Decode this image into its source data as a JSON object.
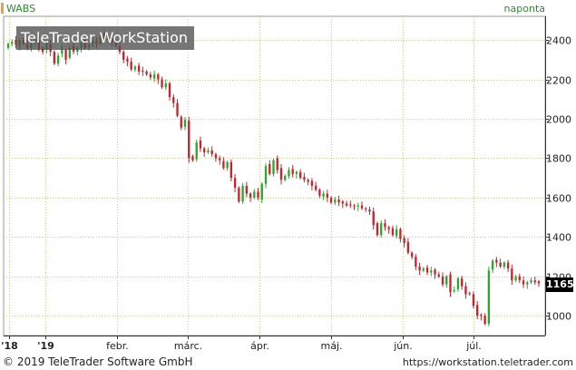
{
  "header": {
    "symbol": "WABS",
    "period": "naponta"
  },
  "watermark": "TeleTrader WorkStation",
  "footer": {
    "copyright": "© 2019 TeleTrader Software GmbH",
    "url": "https://workstation.teletrader.com"
  },
  "last_price": "1165",
  "colors": {
    "up": "#2ea52e",
    "down": "#c8232c",
    "accent": "#f2a03d",
    "grid": "#b7dc7a"
  },
  "chart_data": {
    "type": "candlestick",
    "y_axis_position": "right",
    "ylim": [
      900,
      2520
    ],
    "y_ticks": [
      1000,
      1200,
      1400,
      1600,
      1800,
      2000,
      2200,
      2400
    ],
    "x_tick_labels": [
      "'18",
      "'19",
      "febr.",
      "márc.",
      "ápr.",
      "máj.",
      "jún.",
      "júl."
    ],
    "last_value": 1165,
    "close": [
      2380,
      2390,
      2375,
      2400,
      2380,
      2360,
      2385,
      2400,
      2350,
      2340,
      2380,
      2340,
      2280,
      2320,
      2360,
      2300,
      2360,
      2340,
      2360,
      2390,
      2360,
      2375,
      2395,
      2380,
      2420,
      2400,
      2410,
      2390,
      2370,
      2340,
      2300,
      2290,
      2250,
      2265,
      2240,
      2240,
      2225,
      2210,
      2225,
      2200,
      2160,
      2180,
      2110,
      2080,
      2015,
      1955,
      1995,
      1800,
      1790,
      1880,
      1850,
      1830,
      1840,
      1820,
      1800,
      1790,
      1750,
      1780,
      1700,
      1650,
      1580,
      1660,
      1620,
      1600,
      1630,
      1600,
      1670,
      1760,
      1720,
      1790,
      1740,
      1690,
      1710,
      1740,
      1720,
      1730,
      1700,
      1690,
      1680,
      1660,
      1640,
      1610,
      1620,
      1600,
      1575,
      1590,
      1575,
      1570,
      1560,
      1560,
      1555,
      1560,
      1545,
      1540,
      1530,
      1460,
      1410,
      1470,
      1450,
      1440,
      1410,
      1440,
      1390,
      1370,
      1320,
      1300,
      1250,
      1230,
      1240,
      1220,
      1230,
      1210,
      1200,
      1160,
      1200,
      1120,
      1130,
      1190,
      1150,
      1110,
      1110,
      1050,
      1000,
      1000,
      960,
      1230,
      1280,
      1270,
      1250,
      1270,
      1240,
      1180,
      1200,
      1180,
      1160,
      1170,
      1180,
      1170,
      1165
    ],
    "open": [
      2360,
      2380,
      2400,
      2370,
      2400,
      2380,
      2360,
      2390,
      2400,
      2360,
      2350,
      2380,
      2340,
      2280,
      2330,
      2350,
      2310,
      2370,
      2340,
      2360,
      2400,
      2360,
      2380,
      2395,
      2380,
      2430,
      2400,
      2410,
      2390,
      2370,
      2340,
      2305,
      2290,
      2250,
      2270,
      2245,
      2240,
      2225,
      2205,
      2225,
      2200,
      2160,
      2180,
      2110,
      2080,
      2010,
      1960,
      1990,
      1810,
      1795,
      1890,
      1850,
      1830,
      1840,
      1820,
      1800,
      1785,
      1750,
      1780,
      1700,
      1650,
      1580,
      1660,
      1620,
      1600,
      1630,
      1590,
      1670,
      1770,
      1720,
      1800,
      1750,
      1690,
      1710,
      1745,
      1720,
      1730,
      1705,
      1690,
      1685,
      1660,
      1640,
      1605,
      1620,
      1600,
      1575,
      1590,
      1580,
      1570,
      1565,
      1560,
      1555,
      1560,
      1545,
      1540,
      1530,
      1470,
      1410,
      1470,
      1450,
      1445,
      1405,
      1440,
      1395,
      1375,
      1320,
      1300,
      1250,
      1230,
      1245,
      1220,
      1235,
      1210,
      1200,
      1160,
      1210,
      1125,
      1135,
      1190,
      1150,
      1115,
      1110,
      1055,
      1005,
      1000,
      960,
      1235,
      1285,
      1270,
      1250,
      1270,
      1240,
      1180,
      1200,
      1180,
      1160,
      1170,
      1180,
      1175
    ]
  }
}
